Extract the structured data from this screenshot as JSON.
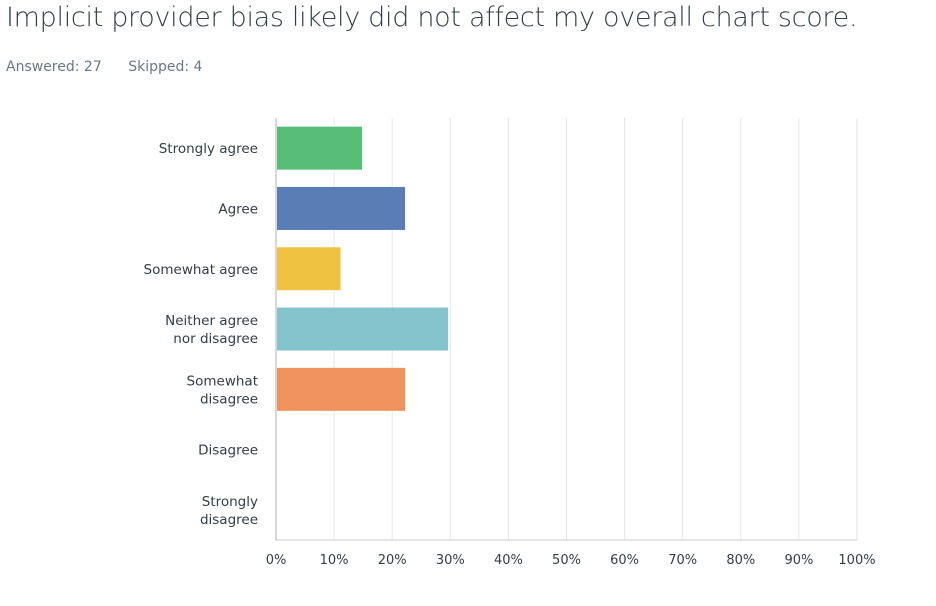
{
  "header": {
    "title": "Implicit provider bias likely did not affect my overall chart score.",
    "answered": "Answered: 27",
    "skipped": "Skipped: 4"
  },
  "chart_data": {
    "type": "bar",
    "orientation": "horizontal",
    "title": "Implicit provider bias likely did not affect my overall chart score.",
    "categories": [
      "Strongly agree",
      "Agree",
      "Somewhat agree",
      "Neither agree\nnor disagree",
      "Somewhat\ndisagree",
      "Disagree",
      "Strongly\ndisagree"
    ],
    "values": [
      14.81,
      22.22,
      11.11,
      29.63,
      22.22,
      0,
      0
    ],
    "colors": [
      "#57bd77",
      "#5b7db5",
      "#f0c242",
      "#83c4cc",
      "#f0925b",
      "#999999",
      "#999999"
    ],
    "xlim": [
      0,
      100
    ],
    "xticks": [
      "0%",
      "10%",
      "20%",
      "30%",
      "40%",
      "50%",
      "60%",
      "70%",
      "80%",
      "90%",
      "100%"
    ],
    "xlabel": "",
    "ylabel": "",
    "grid": true,
    "legend": "none"
  }
}
